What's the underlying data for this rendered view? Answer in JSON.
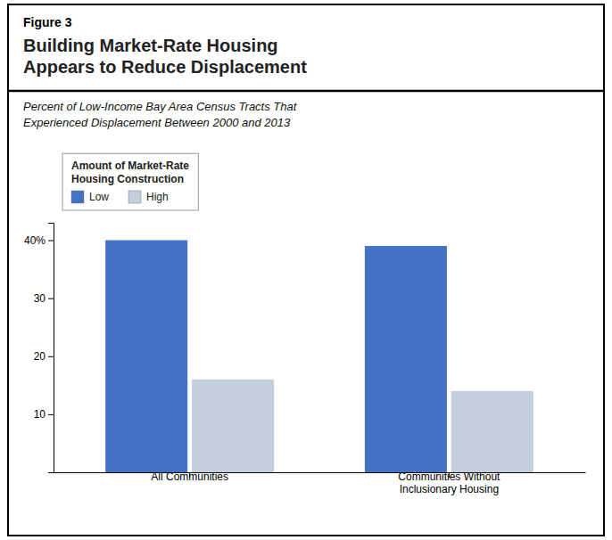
{
  "chart_data": {
    "type": "bar",
    "annotations": [
      "Figure 3"
    ],
    "title": "Building Market-Rate Housing\nAppears to Reduce Displacement",
    "subtitle": "Percent of Low-Income Bay Area Census Tracts That\nExperienced Displacement Between 2000 and 2013",
    "categories": [
      "All Communities",
      "Communities Without\nInclusionary Housing"
    ],
    "series": [
      {
        "name": "Low",
        "color": "#4472C4",
        "values": [
          40,
          39
        ]
      },
      {
        "name": "High",
        "color": "#C5CEDE",
        "values": [
          16,
          14
        ]
      }
    ],
    "legend_title": "Amount of Market-Rate\nHousing Construction",
    "legend": "upper left",
    "ylim": [
      0,
      43
    ],
    "yticks": [
      10,
      20,
      30,
      {
        "value": 40,
        "label": "40%"
      }
    ],
    "grid": false
  }
}
